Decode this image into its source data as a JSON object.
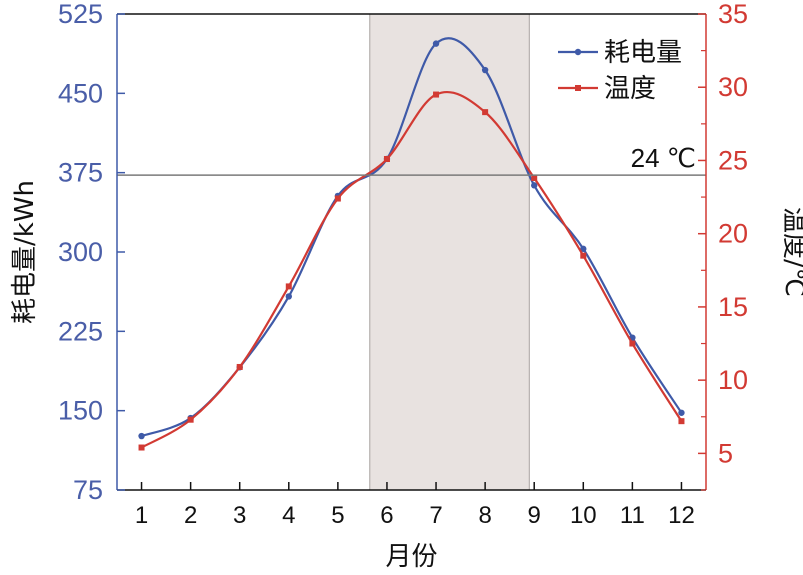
{
  "chart_data": {
    "type": "line",
    "title": "",
    "xlabel": "月份",
    "ylabel_left": "耗电量/kWh",
    "ylabel_right": "温度/℃",
    "x": [
      1,
      2,
      3,
      4,
      5,
      6,
      7,
      8,
      9,
      10,
      11,
      12
    ],
    "x_tick_labels": [
      "1",
      "2",
      "3",
      "4",
      "5",
      "6",
      "7",
      "8",
      "9",
      "10",
      "11",
      "12"
    ],
    "xlim": [
      0.5,
      12.5
    ],
    "ylim_left": [
      75,
      525
    ],
    "ylim_right": [
      2.5,
      35
    ],
    "yticks_left": [
      75,
      150,
      225,
      300,
      375,
      450,
      525
    ],
    "yticks_right": [
      5,
      10,
      15,
      20,
      25,
      30,
      35
    ],
    "series": [
      {
        "name": "耗电量",
        "axis": "left",
        "color": "#3f5aa8",
        "marker": "circle",
        "values": [
          126,
          143,
          191,
          258,
          353,
          388,
          497,
          472,
          363,
          303,
          219,
          148
        ]
      },
      {
        "name": "温度",
        "axis": "right",
        "color": "#d23a33",
        "marker": "square",
        "values": [
          5.4,
          7.3,
          10.9,
          16.4,
          22.4,
          25.1,
          29.5,
          28.3,
          23.8,
          18.5,
          12.5,
          7.2
        ]
      }
    ],
    "reference_line": {
      "label": "24 ℃",
      "value_right": 24
    },
    "shaded_range": {
      "x_start": 5.65,
      "x_end": 8.9,
      "color": "#e8e2e0"
    },
    "legend": "top-right",
    "grid": false
  }
}
